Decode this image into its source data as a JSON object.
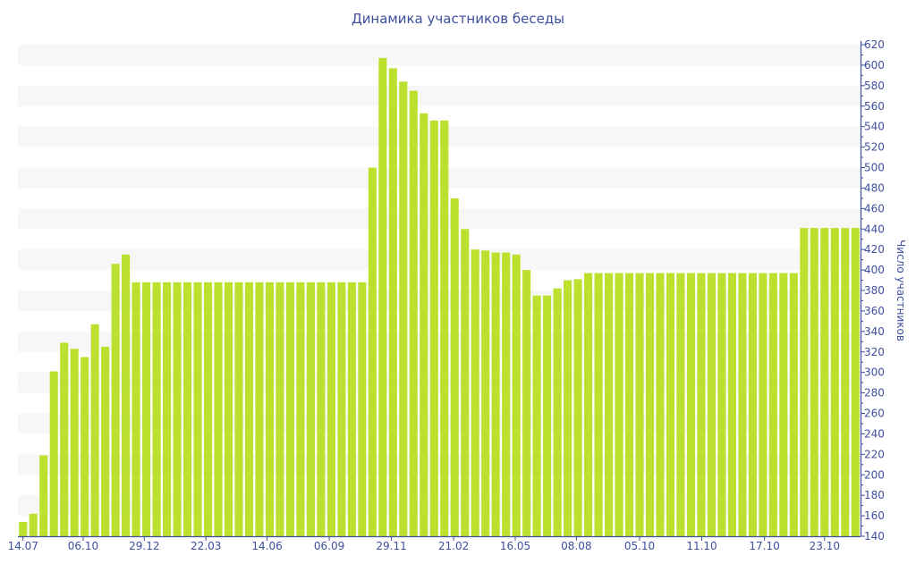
{
  "chart_data": {
    "type": "bar",
    "title": "Динамика участников беседы",
    "xlabel": "",
    "ylabel": "Число участников",
    "ylim": [
      140,
      620
    ],
    "ytick_step": 20,
    "grid": "alternating horizontal bands",
    "bar_color": "#bce02e",
    "text_color": "#3e4f9e",
    "values": [
      154,
      162,
      219,
      301,
      329,
      323,
      315,
      347,
      325,
      406,
      415,
      388,
      388,
      388,
      388,
      388,
      388,
      388,
      388,
      388,
      388,
      388,
      388,
      388,
      388,
      388,
      388,
      388,
      388,
      388,
      388,
      388,
      388,
      388,
      500,
      607,
      597,
      584,
      575,
      553,
      546,
      546,
      470,
      440,
      420,
      419,
      417,
      417,
      415,
      400,
      375,
      375,
      382,
      390,
      391,
      397,
      397,
      397,
      397,
      397,
      397,
      397,
      397,
      397,
      397,
      397,
      397,
      397,
      397,
      397,
      397,
      397,
      397,
      397,
      397,
      397,
      441,
      441,
      441,
      441,
      441,
      441
    ],
    "x_ticks": [
      {
        "label": "14.07",
        "index": 0
      },
      {
        "label": "06.10",
        "index": 5.85
      },
      {
        "label": "29.12",
        "index": 11.8
      },
      {
        "label": "22.03",
        "index": 17.8
      },
      {
        "label": "14.06",
        "index": 23.75
      },
      {
        "label": "06.09",
        "index": 29.8
      },
      {
        "label": "29.11",
        "index": 35.85
      },
      {
        "label": "21.02",
        "index": 41.9
      },
      {
        "label": "16.05",
        "index": 47.9
      },
      {
        "label": "08.08",
        "index": 53.85
      },
      {
        "label": "05.10",
        "index": 60
      },
      {
        "label": "11.10",
        "index": 66.05
      },
      {
        "label": "17.10",
        "index": 72.15
      },
      {
        "label": "23.10",
        "index": 78
      }
    ]
  }
}
